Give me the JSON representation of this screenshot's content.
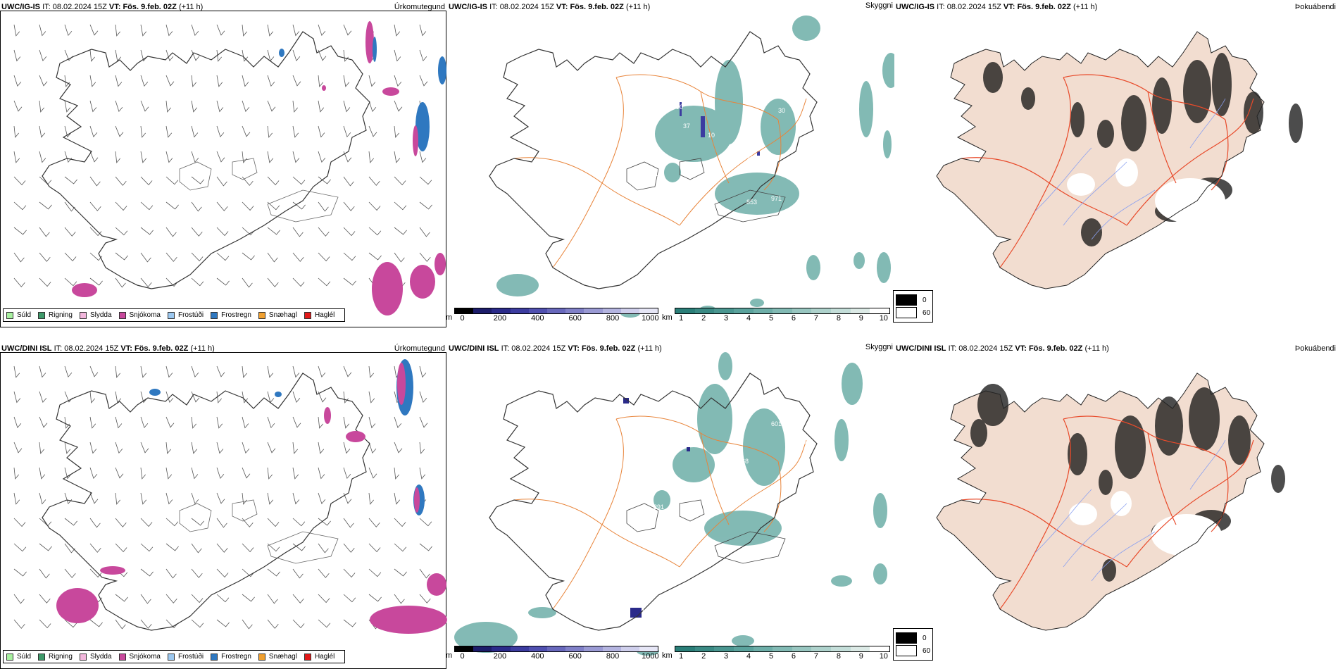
{
  "rows": [
    {
      "model": "UWC/IG-IS",
      "it_label": "IT:",
      "it_value": "08.02.2024 15Z",
      "vt_label": "VT:",
      "vt_value": "Fös. 9.feb. 02Z",
      "lead": "(+11 h)"
    },
    {
      "model": "UWC/DINI ISL",
      "it_label": "IT:",
      "it_value": "08.02.2024 15Z",
      "vt_label": "VT:",
      "vt_value": "Fös. 9.feb. 02Z",
      "lead": "(+11 h)"
    }
  ],
  "panel_types": {
    "precip": "Úrkomutegund",
    "cloud": "Skyggni",
    "fog": "Þokuábendi"
  },
  "precip_legend": [
    {
      "label": "Súld",
      "color": "#a8f0a0"
    },
    {
      "label": "Rigning",
      "color": "#3e9a6a"
    },
    {
      "label": "Slydda",
      "color": "#f2b6dc"
    },
    {
      "label": "Snjókoma",
      "color": "#c8489c"
    },
    {
      "label": "Frostúði",
      "color": "#9cc8f0"
    },
    {
      "label": "Frostregn",
      "color": "#2f78c0"
    },
    {
      "label": "Snæhagl",
      "color": "#f0a030"
    },
    {
      "label": "Haglél",
      "color": "#e21818"
    }
  ],
  "cloudbase_scale": {
    "unit": "m",
    "ticks": [
      "0",
      "200",
      "400",
      "600",
      "800",
      "1000"
    ],
    "colors": [
      "#000000",
      "#1c1c6a",
      "#2a2a8a",
      "#3c3ca0",
      "#5050b0",
      "#6868bc",
      "#8080c8",
      "#9a9ad4",
      "#b4b4e0",
      "#cfcfec",
      "#e6e6f6"
    ]
  },
  "visibility_scale": {
    "unit": "km",
    "ticks": [
      "1",
      "2",
      "3",
      "4",
      "5",
      "6",
      "7",
      "8",
      "9",
      "10"
    ],
    "colors": [
      "#2a7e78",
      "#3a8a84",
      "#4a9690",
      "#5aa29c",
      "#6daea8",
      "#82bab4",
      "#98c6c0",
      "#aed2cc",
      "#c4ded9",
      "#dceae6",
      "#ffffff"
    ]
  },
  "fog_legend": [
    {
      "label": "0",
      "color": "#000000"
    },
    {
      "label": "60",
      "color": "#ffffff"
    }
  ],
  "cloud_labels_top": [
    "10",
    "37",
    "10",
    "21",
    "37",
    "853",
    "971",
    "30"
  ],
  "cloud_labels_bottom": [
    "601",
    "301",
    "68",
    "291",
    "18",
    "14",
    "60"
  ],
  "colors": {
    "coast": "#222222",
    "roads": "#e8843a",
    "fog_roads": "#e84a2a",
    "fog_land": "#f2ddd0",
    "rivers": "#8aa0f0"
  }
}
